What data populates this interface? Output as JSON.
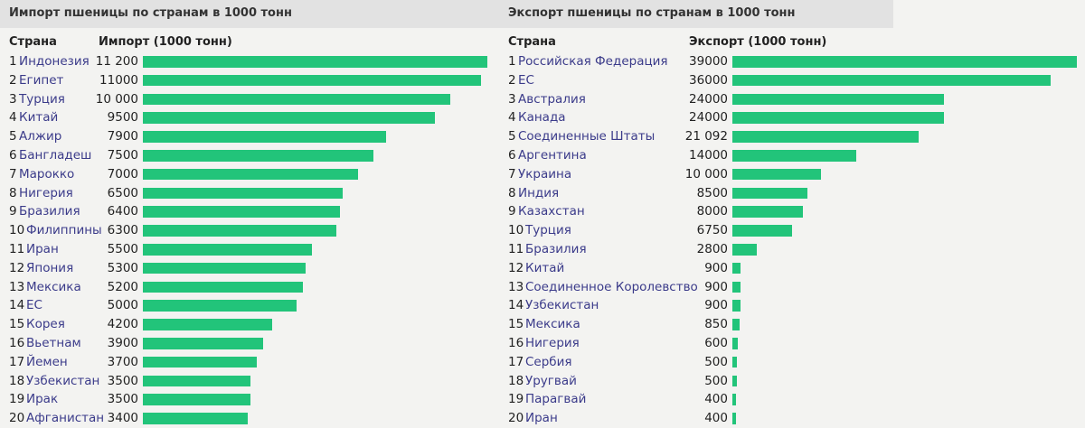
{
  "chart_data": [
    {
      "type": "bar",
      "orientation": "horizontal",
      "title": "Импорт пшеницы по странам в 1000 тонн",
      "category_header": "Страна",
      "value_header": "Импорт (1000 тонн)",
      "max_value": 11200,
      "bar_color": "#22c47a",
      "rows": [
        {
          "rank": "1",
          "country": "Индонезия",
          "label": "11 200",
          "value": 11200
        },
        {
          "rank": "2",
          "country": "Египет",
          "label": "11000",
          "value": 11000
        },
        {
          "rank": "3",
          "country": "Турция",
          "label": "10 000",
          "value": 10000
        },
        {
          "rank": "4",
          "country": "Китай",
          "label": "9500",
          "value": 9500
        },
        {
          "rank": "5",
          "country": "Алжир",
          "label": "7900",
          "value": 7900
        },
        {
          "rank": "6",
          "country": "Бангладеш",
          "label": "7500",
          "value": 7500
        },
        {
          "rank": "7",
          "country": "Марокко",
          "label": "7000",
          "value": 7000
        },
        {
          "rank": "8",
          "country": "Нигерия",
          "label": "6500",
          "value": 6500
        },
        {
          "rank": "9",
          "country": "Бразилия",
          "label": "6400",
          "value": 6400
        },
        {
          "rank": "10",
          "country": "Филиппины",
          "label": "6300",
          "value": 6300
        },
        {
          "rank": "11",
          "country": "Иран",
          "label": "5500",
          "value": 5500
        },
        {
          "rank": "12",
          "country": "Япония",
          "label": "5300",
          "value": 5300
        },
        {
          "rank": "13",
          "country": "Мексика",
          "label": "5200",
          "value": 5200
        },
        {
          "rank": "14",
          "country": "ЕС",
          "label": "5000",
          "value": 5000
        },
        {
          "rank": "15",
          "country": "Корея",
          "label": "4200",
          "value": 4200
        },
        {
          "rank": "16",
          "country": "Вьетнам",
          "label": "3900",
          "value": 3900
        },
        {
          "rank": "17",
          "country": "Йемен",
          "label": "3700",
          "value": 3700
        },
        {
          "rank": "18",
          "country": "Узбекистан",
          "label": "3500",
          "value": 3500
        },
        {
          "rank": "19",
          "country": "Ирак",
          "label": "3500",
          "value": 3500
        },
        {
          "rank": "20",
          "country": "Афганистан",
          "label": "3400",
          "value": 3400
        }
      ]
    },
    {
      "type": "bar",
      "orientation": "horizontal",
      "title": "Экспорт пшеницы по странам в 1000 тонн",
      "category_header": "Страна",
      "value_header": "Экспорт (1000 тонн)",
      "max_value": 39000,
      "bar_color": "#22c47a",
      "rows": [
        {
          "rank": "1",
          "country": "Российская Федерация",
          "label": "39000",
          "value": 39000
        },
        {
          "rank": "2",
          "country": "ЕС",
          "label": "36000",
          "value": 36000
        },
        {
          "rank": "3",
          "country": "Австралия",
          "label": "24000",
          "value": 24000
        },
        {
          "rank": "4",
          "country": "Канада",
          "label": "24000",
          "value": 24000
        },
        {
          "rank": "5",
          "country": "Соединенные Штаты",
          "label": "21 092",
          "value": 21092
        },
        {
          "rank": "6",
          "country": "Аргентина",
          "label": "14000",
          "value": 14000
        },
        {
          "rank": "7",
          "country": "Украина",
          "label": "10 000",
          "value": 10000
        },
        {
          "rank": "8",
          "country": "Индия",
          "label": "8500",
          "value": 8500
        },
        {
          "rank": "9",
          "country": "Казахстан",
          "label": "8000",
          "value": 8000
        },
        {
          "rank": "10",
          "country": "Турция",
          "label": "6750",
          "value": 6750
        },
        {
          "rank": "11",
          "country": "Бразилия",
          "label": "2800",
          "value": 2800
        },
        {
          "rank": "12",
          "country": "Китай",
          "label": "900",
          "value": 900
        },
        {
          "rank": "13",
          "country": "Соединенное Королевство",
          "label": "900",
          "value": 900
        },
        {
          "rank": "14",
          "country": "Узбекистан",
          "label": "900",
          "value": 900
        },
        {
          "rank": "15",
          "country": "Мексика",
          "label": "850",
          "value": 850
        },
        {
          "rank": "16",
          "country": "Нигерия",
          "label": "600",
          "value": 600
        },
        {
          "rank": "17",
          "country": "Сербия",
          "label": "500",
          "value": 500
        },
        {
          "rank": "18",
          "country": "Уругвай",
          "label": "500",
          "value": 500
        },
        {
          "rank": "19",
          "country": "Парагвай",
          "label": "400",
          "value": 400
        },
        {
          "rank": "20",
          "country": "Иран",
          "label": "400",
          "value": 400
        }
      ]
    }
  ]
}
